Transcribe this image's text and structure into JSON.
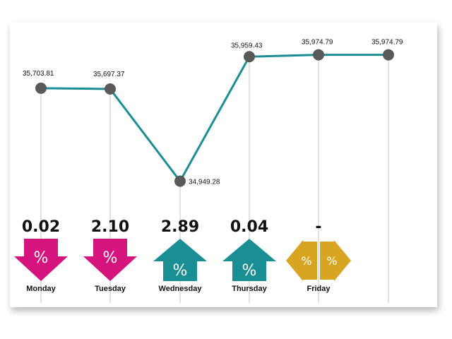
{
  "chart_data": {
    "type": "line",
    "title": "",
    "xlabel": "",
    "ylabel": "",
    "categories": [
      "Monday",
      "Tuesday",
      "Wednesday",
      "Thursday",
      "Friday",
      ""
    ],
    "series": [
      {
        "values": [
          35703.81,
          35697.37,
          34949.28,
          35959.43,
          35974.79,
          35974.79
        ]
      }
    ],
    "value_labels": [
      "35,703.81",
      "35,697.37",
      "34,949.28",
      "35,959.43",
      "35,974.79",
      "35,974.79"
    ],
    "ylim": [
      34700,
      36150
    ],
    "grid": false,
    "line_color": "#1a8e95",
    "marker_color": "#595959",
    "daily_changes": [
      {
        "day": "Monday",
        "value": "0.02",
        "direction": "down",
        "color": "#d5157d",
        "icon": "percent-down-arrow-icon"
      },
      {
        "day": "Tuesday",
        "value": "2.10",
        "direction": "down",
        "color": "#d5157d",
        "icon": "percent-down-arrow-icon"
      },
      {
        "day": "Wednesday",
        "value": "2.89",
        "direction": "up",
        "color": "#1a8e95",
        "icon": "percent-up-arrow-icon"
      },
      {
        "day": "Thursday",
        "value": "0.04",
        "direction": "up",
        "color": "#1a8e95",
        "icon": "percent-up-arrow-icon"
      },
      {
        "day": "Friday",
        "value": "-",
        "direction": "flat",
        "color": "#d8a522",
        "icon": "percent-left-right-arrows-icon"
      }
    ],
    "arrow_symbol": "%"
  }
}
